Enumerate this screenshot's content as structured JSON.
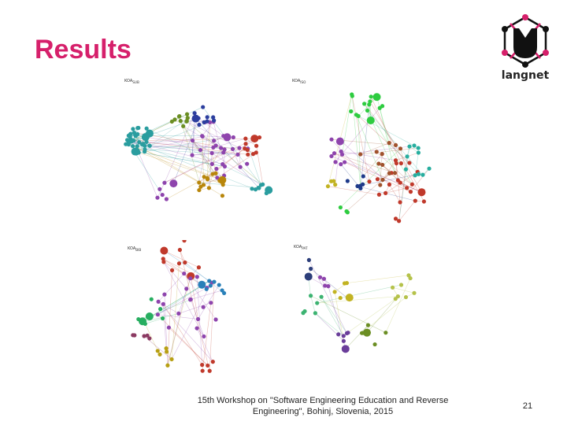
{
  "slide": {
    "title": "Results",
    "footer": "15th Workshop on \"Software Engineering Education and Reverse Engineering\", Bohinj, Slovenia, 2015",
    "page_number": "21"
  },
  "logo": {
    "text": "langnet",
    "colors": {
      "ring": "#d6206b",
      "body": "#111111"
    }
  },
  "panels": [
    {
      "label": "KOA",
      "label_sub": "SUB",
      "colors": [
        "#2a9d9f",
        "#8e44ad",
        "#2c3e9e",
        "#b8860b",
        "#6b8e23",
        "#c0392b"
      ]
    },
    {
      "label": "KOA",
      "label_sub": "ISO",
      "colors": [
        "#2ecc40",
        "#c0392b",
        "#a0522d",
        "#27ae9f",
        "#8e44ad",
        "#1e3a8a",
        "#c2b322"
      ]
    },
    {
      "label": "KOA",
      "label_sub": "BIB",
      "colors": [
        "#c0392b",
        "#8e44ad",
        "#27ae60",
        "#2980b9",
        "#b8a014",
        "#8b3a62"
      ]
    },
    {
      "label": "KOA",
      "label_sub": "PAT",
      "colors": [
        "#2c3e7a",
        "#3cb371",
        "#c2b322",
        "#6a3d9a",
        "#8e44ad",
        "#6b8e23",
        "#b5c24a"
      ]
    }
  ]
}
